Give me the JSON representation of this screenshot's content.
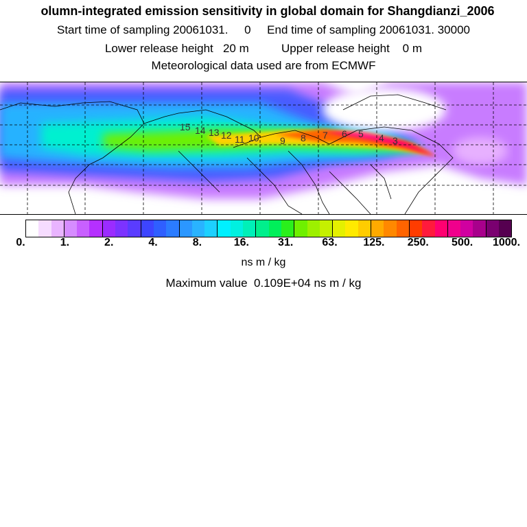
{
  "header": {
    "title": "olumn-integrated emission sensitivity in global domain for Shangdianzi_2006",
    "start": "Start time of sampling 20061031.     0     End time of sampling 20061031. 30000",
    "release": "Lower release height   20 m          Upper release height    0 m",
    "met": "Meteorological data used are from ECMWF"
  },
  "map": {
    "day_labels": [
      "15",
      "14",
      "13",
      "12",
      "11",
      "10",
      "9",
      "8",
      "7",
      "6",
      "5",
      "4",
      "3"
    ]
  },
  "colorbar": {
    "labels": [
      "0.",
      "1.",
      "2.",
      "4.",
      "8.",
      "16.",
      "31.",
      "63.",
      "125.",
      "250.",
      "500.",
      "1000."
    ],
    "colors": [
      "#ffffff",
      "#f6dcff",
      "#e9b4ff",
      "#d68cff",
      "#c860ff",
      "#b530ff",
      "#9b2cff",
      "#7c33ff",
      "#5a3cff",
      "#3d45ff",
      "#2f5fff",
      "#2b7cff",
      "#2b97ff",
      "#29b3ff",
      "#1dd0ff",
      "#00f0ff",
      "#00f0e0",
      "#00f0b8",
      "#00ef8c",
      "#00ef5a",
      "#2aef1c",
      "#6ef000",
      "#9df000",
      "#c5f000",
      "#e4f000",
      "#ffea00",
      "#ffcc00",
      "#ffaa00",
      "#ff8800",
      "#ff6400",
      "#ff3c00",
      "#ff1a3c",
      "#ff0070",
      "#f0008c",
      "#d000a0",
      "#a8008c",
      "#7a0070",
      "#560050"
    ],
    "units": "ns m / kg"
  },
  "footer": {
    "max_value": "Maximum value  0.109E+04 ns m / kg"
  }
}
